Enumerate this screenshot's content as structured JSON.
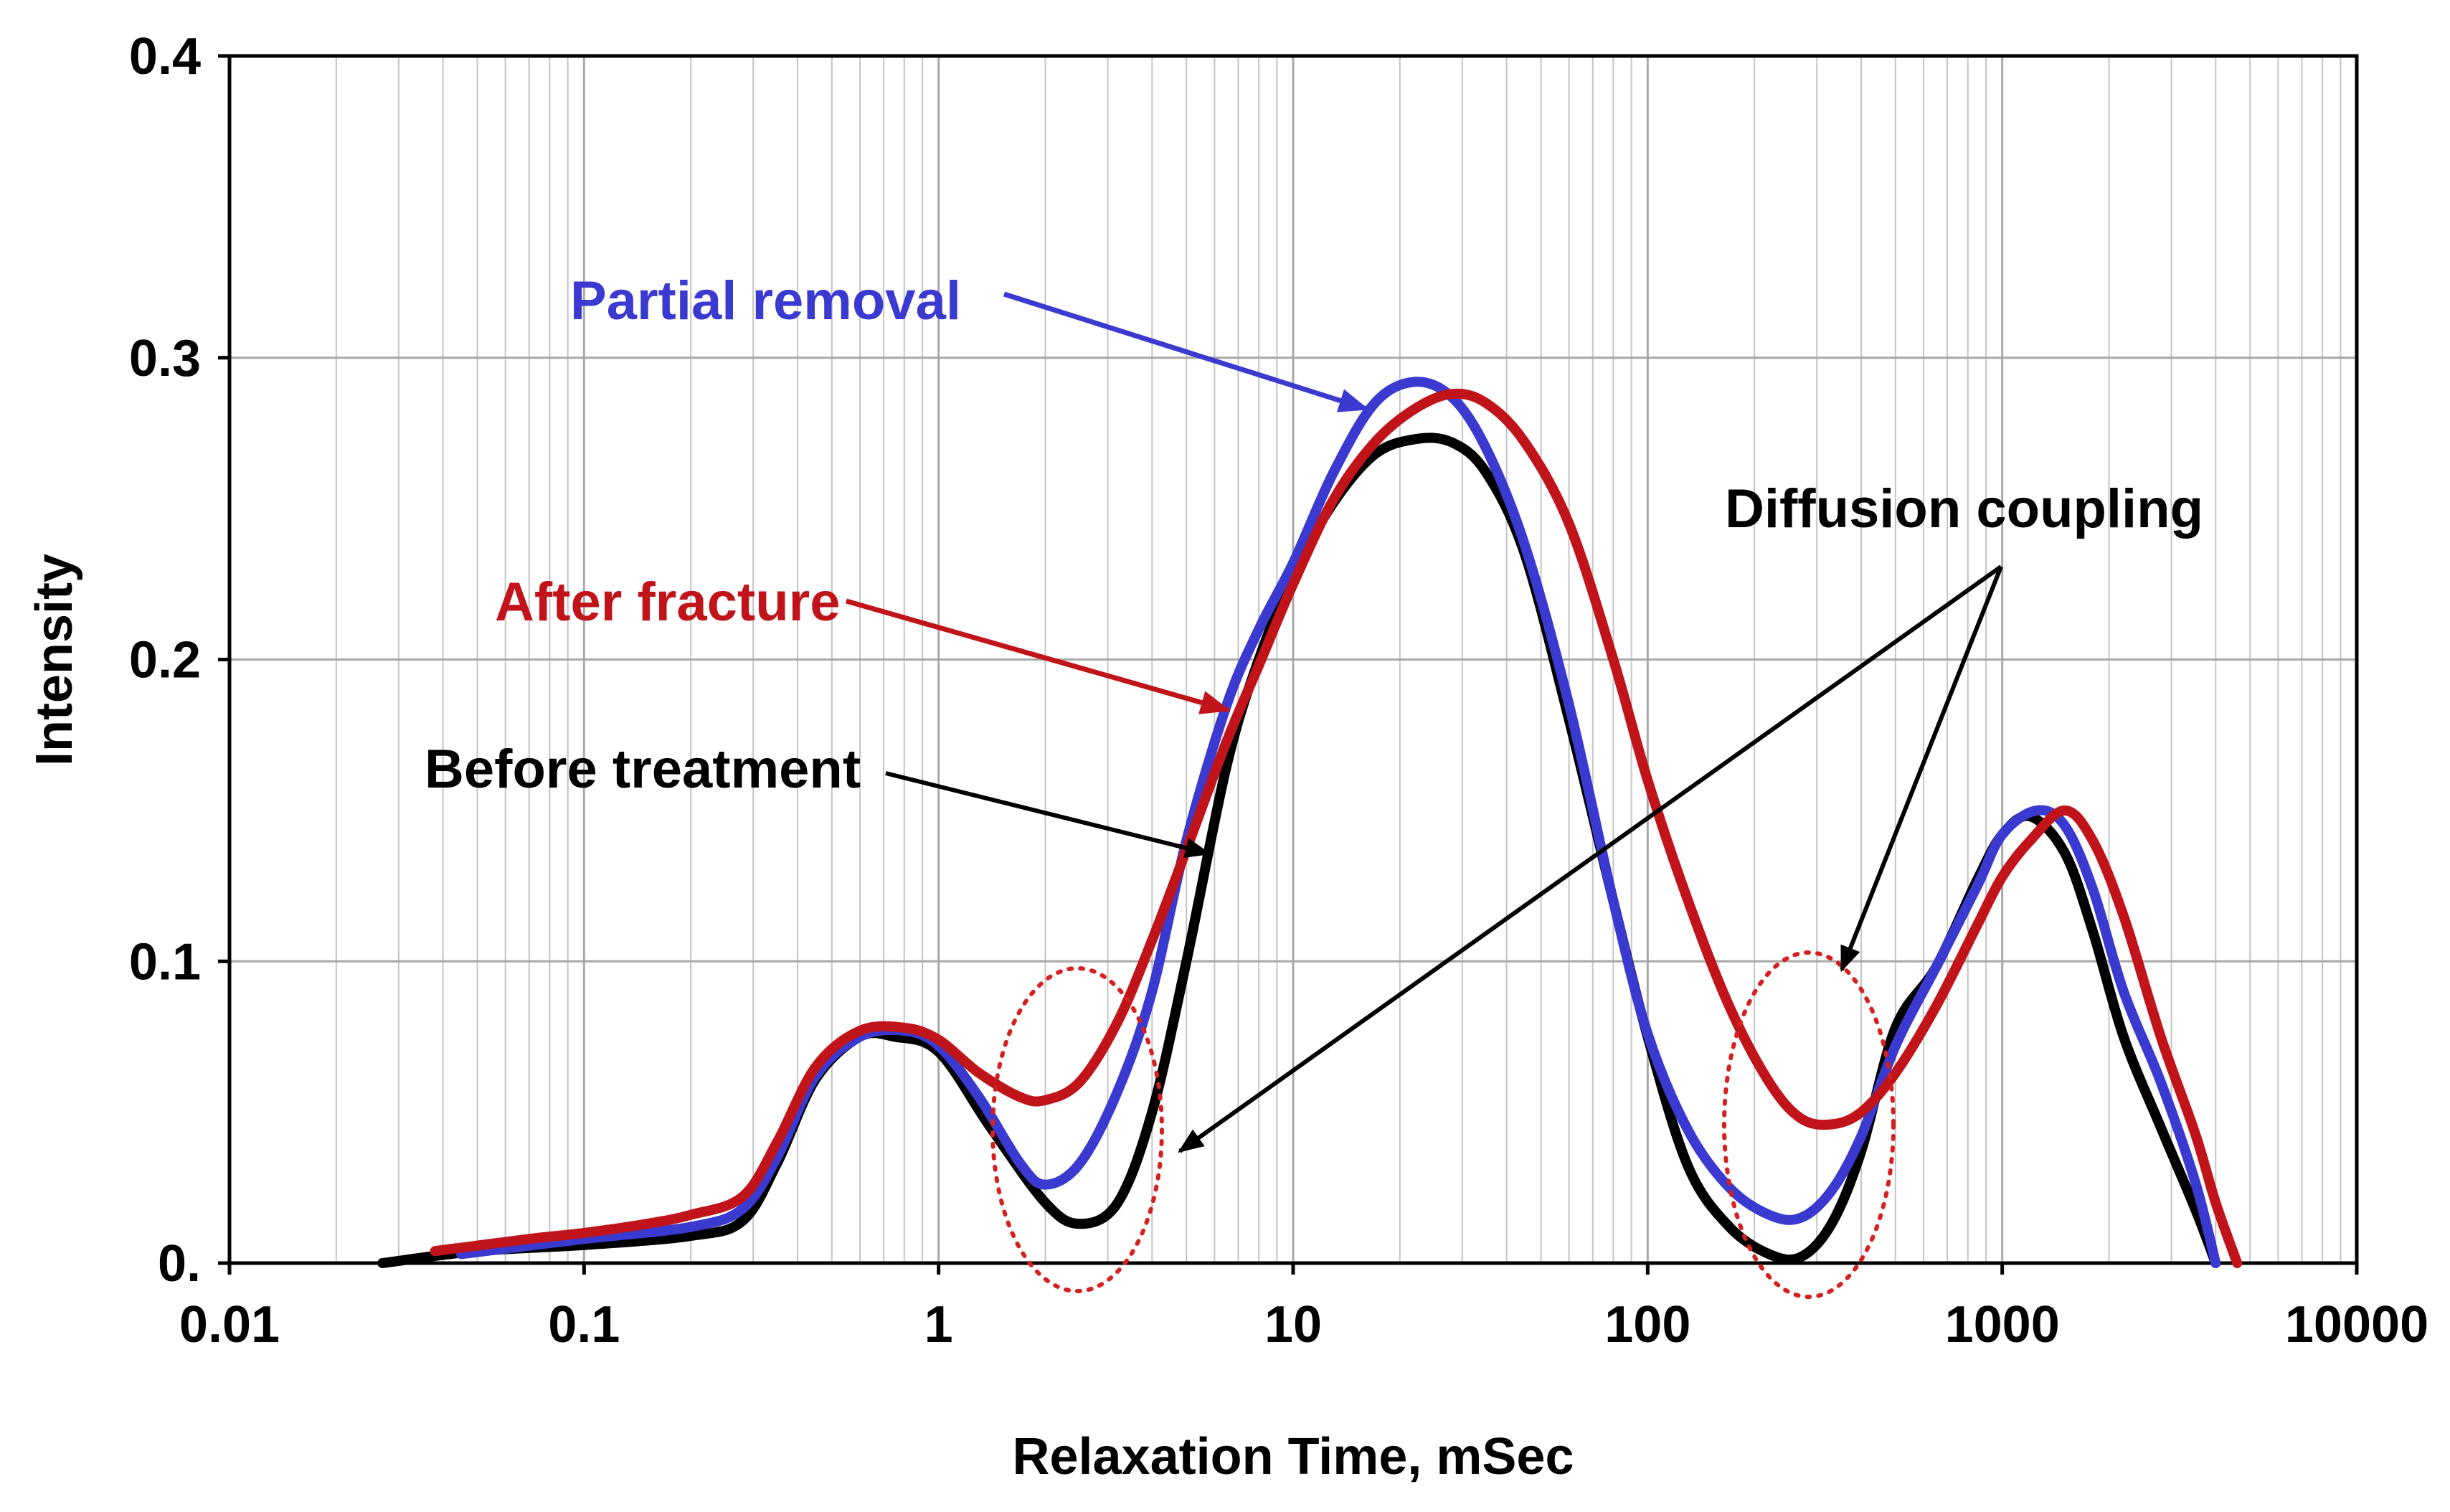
{
  "chart_data": {
    "type": "line",
    "title": "",
    "xlabel": "Relaxation Time, mSec",
    "ylabel": "Intensity",
    "xscale": "log",
    "xlim": [
      0.01,
      10000
    ],
    "ylim": [
      0,
      0.4
    ],
    "grid": true,
    "x_ticks": [
      {
        "value": 0.01,
        "label": "0.01"
      },
      {
        "value": 0.1,
        "label": "0.1"
      },
      {
        "value": 1,
        "label": "1"
      },
      {
        "value": 10,
        "label": "10"
      },
      {
        "value": 100,
        "label": "100"
      },
      {
        "value": 1000,
        "label": "1000"
      },
      {
        "value": 10000,
        "label": "10000"
      }
    ],
    "y_ticks": [
      {
        "value": 0,
        "label": "0."
      },
      {
        "value": 0.1,
        "label": "0.1"
      },
      {
        "value": 0.2,
        "label": "0.2"
      },
      {
        "value": 0.3,
        "label": "0.3"
      },
      {
        "value": 0.4,
        "label": "0.4"
      }
    ],
    "series": [
      {
        "name": "Before treatment",
        "color": "#000000",
        "x": [
          0.027,
          0.05,
          0.1,
          0.2,
          0.28,
          0.35,
          0.45,
          0.6,
          0.75,
          1.0,
          1.4,
          2.0,
          2.5,
          3.2,
          4.0,
          5.0,
          6.5,
          8.0,
          10,
          13,
          17,
          22,
          28,
          35,
          45,
          60,
          80,
          100,
          130,
          170,
          220,
          270,
          330,
          400,
          500,
          650,
          850,
          1000,
          1200,
          1500,
          1800,
          2200,
          2800,
          3500,
          4000
        ],
        "y": [
          0.0,
          0.004,
          0.006,
          0.009,
          0.014,
          0.033,
          0.061,
          0.075,
          0.075,
          0.07,
          0.045,
          0.02,
          0.013,
          0.02,
          0.05,
          0.1,
          0.165,
          0.2,
          0.228,
          0.252,
          0.268,
          0.273,
          0.272,
          0.262,
          0.235,
          0.18,
          0.12,
          0.075,
          0.032,
          0.012,
          0.003,
          0.002,
          0.013,
          0.037,
          0.078,
          0.098,
          0.127,
          0.142,
          0.148,
          0.136,
          0.11,
          0.075,
          0.045,
          0.018,
          0.0
        ]
      },
      {
        "name": "Partial removal",
        "color": "#3a3ad0",
        "x": [
          0.045,
          0.1,
          0.2,
          0.28,
          0.35,
          0.45,
          0.6,
          0.8,
          1.0,
          1.3,
          1.7,
          2.0,
          2.5,
          3.2,
          4.0,
          5.0,
          6.5,
          8.0,
          10,
          13,
          17,
          22,
          28,
          35,
          45,
          60,
          80,
          100,
          130,
          170,
          220,
          270,
          330,
          400,
          500,
          650,
          850,
          1000,
          1250,
          1500,
          1800,
          2200,
          2800,
          3500,
          4000
        ],
        "y": [
          0.003,
          0.008,
          0.012,
          0.018,
          0.035,
          0.062,
          0.075,
          0.077,
          0.072,
          0.055,
          0.033,
          0.026,
          0.033,
          0.057,
          0.09,
          0.14,
          0.185,
          0.21,
          0.232,
          0.262,
          0.285,
          0.292,
          0.287,
          0.27,
          0.238,
          0.185,
          0.12,
          0.076,
          0.044,
          0.025,
          0.016,
          0.015,
          0.024,
          0.042,
          0.072,
          0.098,
          0.125,
          0.142,
          0.15,
          0.145,
          0.124,
          0.09,
          0.06,
          0.027,
          0.0
        ]
      },
      {
        "name": "After fracture",
        "color": "#c0141a",
        "x": [
          0.038,
          0.07,
          0.1,
          0.15,
          0.2,
          0.28,
          0.35,
          0.45,
          0.6,
          0.8,
          1.0,
          1.3,
          1.7,
          2.0,
          2.5,
          3.2,
          4.0,
          5.0,
          6.5,
          8.0,
          10,
          13,
          17,
          22,
          28,
          35,
          45,
          60,
          80,
          100,
          130,
          170,
          220,
          270,
          330,
          400,
          500,
          650,
          850,
          1000,
          1200,
          1500,
          1800,
          2200,
          2800,
          3500,
          4000,
          4600
        ],
        "y": [
          0.004,
          0.008,
          0.01,
          0.013,
          0.016,
          0.022,
          0.04,
          0.065,
          0.077,
          0.078,
          0.074,
          0.063,
          0.055,
          0.054,
          0.06,
          0.08,
          0.107,
          0.137,
          0.173,
          0.198,
          0.225,
          0.253,
          0.272,
          0.283,
          0.288,
          0.285,
          0.272,
          0.245,
          0.2,
          0.16,
          0.12,
          0.085,
          0.06,
          0.048,
          0.046,
          0.05,
          0.063,
          0.085,
          0.112,
          0.128,
          0.14,
          0.15,
          0.14,
          0.115,
          0.075,
          0.043,
          0.02,
          0.0
        ]
      }
    ],
    "annotations": [
      {
        "text": "Partial removal",
        "color": "#3a3ad0"
      },
      {
        "text": "After fracture",
        "color": "#c0141a"
      },
      {
        "text": "Before treatment",
        "color": "#000000"
      },
      {
        "text": "Diffusion coupling",
        "color": "#000000"
      }
    ],
    "highlight_ellipses": [
      {
        "x_center": 2.3,
        "y_center": 0.05,
        "label": "Diffusion coupling"
      },
      {
        "x_center": 280,
        "y_center": 0.05,
        "label": "Diffusion coupling"
      }
    ]
  }
}
